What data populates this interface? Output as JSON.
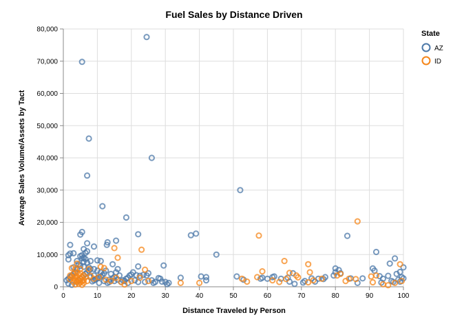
{
  "chart_data": {
    "type": "scatter",
    "title": "Fuel Sales by Distance Driven",
    "xlabel": "Distance Traveled by Person",
    "ylabel": "Average Sales Volume/Assets by Tact",
    "xlim": [
      0,
      100
    ],
    "ylim": [
      0,
      80000
    ],
    "x_ticks": [
      0,
      10,
      20,
      30,
      40,
      50,
      60,
      70,
      80,
      90,
      100
    ],
    "y_ticks": [
      0,
      10000,
      20000,
      30000,
      40000,
      50000,
      60000,
      70000,
      80000
    ],
    "y_tick_labels": [
      "0",
      "10,000",
      "20,000",
      "30,000",
      "40,000",
      "50,000",
      "60,000",
      "70,000",
      "80,000"
    ],
    "grid": true,
    "legend": {
      "title": "State",
      "position": "right"
    },
    "series": [
      {
        "name": "AZ",
        "color": "#4c78a8",
        "points": [
          [
            24.5,
            77500
          ],
          [
            5.5,
            69800
          ],
          [
            7.5,
            46000
          ],
          [
            26,
            40000
          ],
          [
            7,
            34500
          ],
          [
            52,
            30000
          ],
          [
            11.5,
            25000
          ],
          [
            18.5,
            21500
          ],
          [
            5.5,
            17000
          ],
          [
            5,
            16200
          ],
          [
            22,
            16300
          ],
          [
            83.5,
            15800
          ],
          [
            37.5,
            16000
          ],
          [
            39,
            16500
          ],
          [
            15.5,
            14300
          ],
          [
            13,
            13800
          ],
          [
            12.8,
            13000
          ],
          [
            7,
            13500
          ],
          [
            9,
            12500
          ],
          [
            2,
            13000
          ],
          [
            6,
            11700
          ],
          [
            2,
            10300
          ],
          [
            3,
            10400
          ],
          [
            1.5,
            9800
          ],
          [
            7,
            11000
          ],
          [
            45,
            10000
          ],
          [
            92,
            10800
          ],
          [
            97.5,
            8800
          ],
          [
            1.5,
            8500
          ],
          [
            4,
            8000
          ],
          [
            6,
            7800
          ],
          [
            8,
            8000
          ],
          [
            10,
            8200
          ],
          [
            11,
            8000
          ],
          [
            14.5,
            7000
          ],
          [
            22,
            6300
          ],
          [
            29.5,
            6600
          ],
          [
            96,
            7200
          ],
          [
            100,
            6000
          ],
          [
            91,
            5700
          ],
          [
            91.5,
            5000
          ],
          [
            80,
            5700
          ],
          [
            81,
            5200
          ],
          [
            80,
            4500
          ],
          [
            99,
            4600
          ],
          [
            98,
            4000
          ],
          [
            95.5,
            3400
          ],
          [
            93,
            3300
          ],
          [
            99.5,
            3000
          ],
          [
            98.5,
            2200
          ],
          [
            97,
            1500
          ],
          [
            93.5,
            1300
          ],
          [
            86.5,
            1200
          ],
          [
            84.5,
            2600
          ],
          [
            81.5,
            4200
          ],
          [
            77,
            3000
          ],
          [
            75,
            2500
          ],
          [
            73,
            2600
          ],
          [
            71,
            1800
          ],
          [
            67.5,
            4200
          ],
          [
            66,
            2800
          ],
          [
            64,
            2500
          ],
          [
            62,
            3200
          ],
          [
            61.5,
            3000
          ],
          [
            60,
            2500
          ],
          [
            58.5,
            2800
          ],
          [
            58,
            2500
          ],
          [
            51,
            3200
          ],
          [
            53,
            2200
          ],
          [
            42,
            3000
          ],
          [
            42,
            2000
          ],
          [
            40.5,
            3200
          ],
          [
            34.5,
            2800
          ],
          [
            30,
            1500
          ],
          [
            30.5,
            800
          ],
          [
            28.5,
            2500
          ],
          [
            28,
            2700
          ],
          [
            27,
            1500
          ],
          [
            26,
            2000
          ],
          [
            25,
            4200
          ],
          [
            24.5,
            3500
          ],
          [
            23.5,
            3700
          ],
          [
            22.5,
            3400
          ],
          [
            21.5,
            3600
          ],
          [
            21,
            2000
          ],
          [
            20.5,
            4500
          ],
          [
            20,
            3800
          ],
          [
            19.5,
            3500
          ],
          [
            19,
            2800
          ],
          [
            18.5,
            2500
          ],
          [
            18,
            1800
          ],
          [
            17,
            1500
          ],
          [
            16.5,
            3500
          ],
          [
            16,
            5500
          ],
          [
            15.5,
            4500
          ],
          [
            15,
            3000
          ],
          [
            14.5,
            2600
          ],
          [
            14,
            4000
          ],
          [
            13.5,
            2200
          ],
          [
            13,
            1200
          ],
          [
            12.5,
            5000
          ],
          [
            12,
            4200
          ],
          [
            11.5,
            3600
          ],
          [
            11,
            3200
          ],
          [
            10.5,
            2900
          ],
          [
            10,
            2600
          ],
          [
            9.5,
            2300
          ],
          [
            9,
            2000
          ],
          [
            8.5,
            1700
          ],
          [
            8,
            5500
          ],
          [
            7.5,
            5000
          ],
          [
            7,
            4500
          ],
          [
            6.5,
            4000
          ],
          [
            6,
            3500
          ],
          [
            5.5,
            3000
          ],
          [
            5,
            2500
          ],
          [
            4.5,
            2000
          ],
          [
            4,
            1500
          ],
          [
            3.5,
            4500
          ],
          [
            3,
            4000
          ],
          [
            2.5,
            3500
          ],
          [
            2,
            3000
          ],
          [
            1.5,
            2500
          ],
          [
            1,
            2000
          ],
          [
            1.5,
            1000
          ],
          [
            2.5,
            600
          ],
          [
            5,
            9500
          ],
          [
            5.5,
            8800
          ],
          [
            6,
            9000
          ],
          [
            6.5,
            8600
          ],
          [
            7,
            7500
          ],
          [
            4.5,
            7000
          ],
          [
            5,
            6500
          ],
          [
            6,
            6200
          ],
          [
            7.5,
            6000
          ],
          [
            9,
            5500
          ],
          [
            10,
            5000
          ],
          [
            11,
            4500
          ],
          [
            5.5,
            9800
          ],
          [
            6.5,
            10500
          ],
          [
            4,
            5500
          ],
          [
            3,
            6000
          ],
          [
            8,
            3000
          ],
          [
            9,
            3500
          ],
          [
            10.5,
            1200
          ],
          [
            12,
            1800
          ],
          [
            13.5,
            1500
          ],
          [
            15,
            1800
          ],
          [
            16,
            2200
          ],
          [
            17.5,
            2000
          ],
          [
            19,
            1200
          ],
          [
            22,
            1500
          ],
          [
            24,
            1500
          ],
          [
            26.5,
            1200
          ],
          [
            29,
            1600
          ],
          [
            31,
            1200
          ],
          [
            66.5,
            1600
          ],
          [
            68,
            900
          ],
          [
            70.5,
            1300
          ],
          [
            74,
            1600
          ],
          [
            76.5,
            2400
          ],
          [
            79.5,
            3500
          ],
          [
            88,
            2600
          ],
          [
            94,
            2500
          ],
          [
            96.5,
            1800
          ],
          [
            99,
            1600
          ],
          [
            100,
            2600
          ]
        ]
      },
      {
        "name": "ID",
        "color": "#f58518",
        "points": [
          [
            86.5,
            20300
          ],
          [
            57.5,
            15900
          ],
          [
            15,
            12000
          ],
          [
            23,
            11500
          ],
          [
            16,
            9000
          ],
          [
            65,
            8000
          ],
          [
            72,
            7000
          ],
          [
            99,
            7000
          ],
          [
            4,
            7200
          ],
          [
            2.5,
            5800
          ],
          [
            3.5,
            5500
          ],
          [
            5,
            5500
          ],
          [
            7.5,
            5500
          ],
          [
            11,
            6200
          ],
          [
            12,
            5800
          ],
          [
            24,
            5300
          ],
          [
            58.5,
            4800
          ],
          [
            72.5,
            4500
          ],
          [
            66.5,
            4300
          ],
          [
            81.5,
            4000
          ],
          [
            92,
            3500
          ],
          [
            90.5,
            3200
          ],
          [
            4,
            4500
          ],
          [
            3,
            4000
          ],
          [
            5,
            4200
          ],
          [
            2,
            3500
          ],
          [
            6,
            3600
          ],
          [
            4.5,
            3800
          ],
          [
            3.5,
            3300
          ],
          [
            2.5,
            3000
          ],
          [
            5.5,
            3100
          ],
          [
            6.5,
            3000
          ],
          [
            4,
            2800
          ],
          [
            3,
            2600
          ],
          [
            5,
            2500
          ],
          [
            2,
            2300
          ],
          [
            4.5,
            2200
          ],
          [
            3.5,
            2000
          ],
          [
            6,
            2100
          ],
          [
            5.5,
            1800
          ],
          [
            4,
            1600
          ],
          [
            3,
            1500
          ],
          [
            5,
            1300
          ],
          [
            6,
            1200
          ],
          [
            4.5,
            900
          ],
          [
            5.5,
            600
          ],
          [
            3.5,
            700
          ],
          [
            7,
            1800
          ],
          [
            8,
            3400
          ],
          [
            9,
            2500
          ],
          [
            10.5,
            3000
          ],
          [
            12.5,
            2200
          ],
          [
            14,
            1800
          ],
          [
            15.5,
            2800
          ],
          [
            17,
            1500
          ],
          [
            18,
            700
          ],
          [
            20,
            1800
          ],
          [
            22.5,
            2800
          ],
          [
            25,
            1800
          ],
          [
            34.5,
            1200
          ],
          [
            40,
            1200
          ],
          [
            52.5,
            2500
          ],
          [
            54,
            1600
          ],
          [
            57,
            3000
          ],
          [
            63.5,
            1500
          ],
          [
            65.5,
            2400
          ],
          [
            68.5,
            3500
          ],
          [
            72,
            1400
          ],
          [
            73.5,
            2000
          ],
          [
            76,
            2500
          ],
          [
            80.5,
            3500
          ],
          [
            83,
            1800
          ],
          [
            84,
            2500
          ],
          [
            86,
            2400
          ],
          [
            91,
            1400
          ],
          [
            94,
            800
          ],
          [
            95.5,
            500
          ],
          [
            97.5,
            1200
          ],
          [
            99.5,
            1800
          ],
          [
            69,
            2900
          ],
          [
            61.5,
            2000
          ]
        ]
      }
    ]
  }
}
